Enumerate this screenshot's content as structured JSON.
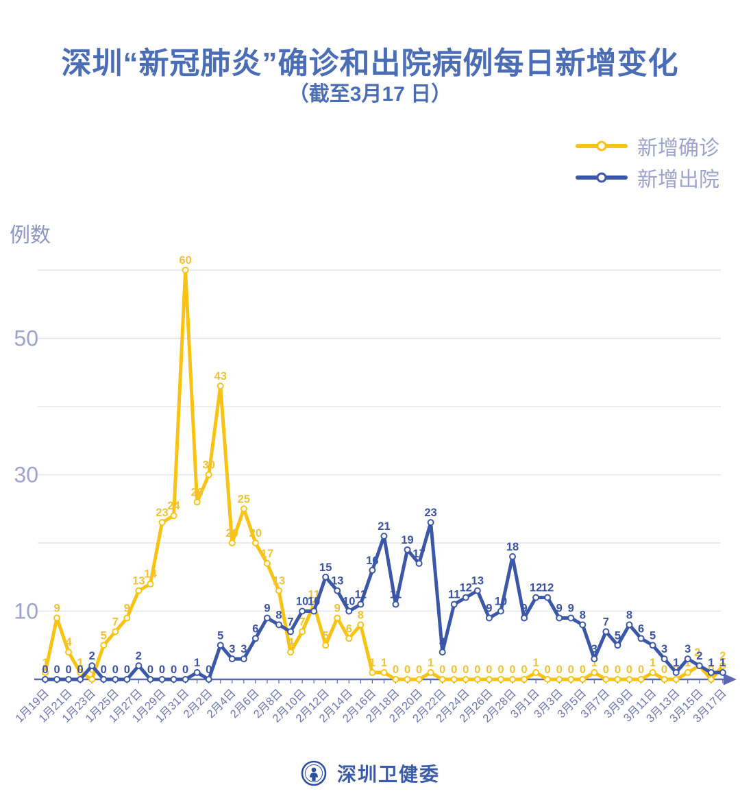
{
  "title": "深圳“新冠肺炎”确诊和出院病例每日新增变化",
  "subtitle": "（截至3月17 日）",
  "y_axis_title": "例数",
  "legend": [
    {
      "label": "新增确诊",
      "color": "#f8c312"
    },
    {
      "label": "新增出院",
      "color": "#3b57a8"
    }
  ],
  "footer": {
    "name": "深圳卫健委",
    "logo": "shenzhen-health-commission-logo"
  },
  "colors": {
    "title": "#4a6db5",
    "axis": "#5c69b2",
    "x_tick_label": "#6b76b8",
    "y_tick_label": "#9ca3ce",
    "gridline": "#e4e5ea",
    "confirmed_line": "#f8c312",
    "confirmed_label": "#f0c235",
    "discharged_line": "#3b57a8",
    "discharged_label": "#3a53a6"
  },
  "chart_data": {
    "type": "line",
    "title": "深圳“新冠肺炎”确诊和出院病例每日新增变化",
    "subtitle": "（截至3月17 日）",
    "ylabel": "例数",
    "ylim": [
      0,
      62
    ],
    "yticks_labeled": [
      10,
      30,
      50
    ],
    "gridlines": [
      10,
      20,
      30,
      40,
      50,
      60
    ],
    "grid": "horizontal-only",
    "legend_position": "top-right",
    "x_label_every": 2,
    "x": [
      "1月19日",
      "1月20日",
      "1月21日",
      "1月22日",
      "1月23日",
      "1月24日",
      "1月25日",
      "1月26日",
      "1月27日",
      "1月28日",
      "1月29日",
      "1月30日",
      "1月31日",
      "2月1日",
      "2月2日",
      "2月3日",
      "2月4日",
      "2月5日",
      "2月6日",
      "2月7日",
      "2月8日",
      "2月9日",
      "2月10日",
      "2月11日",
      "2月12日",
      "2月13日",
      "2月14日",
      "2月15日",
      "2月16日",
      "2月17日",
      "2月18日",
      "2月19日",
      "2月20日",
      "2月21日",
      "2月22日",
      "2月23日",
      "2月24日",
      "2月25日",
      "2月26日",
      "2月27日",
      "2月28日",
      "2月29日",
      "3月1日",
      "3月2日",
      "3月3日",
      "3月4日",
      "3月5日",
      "3月6日",
      "3月7日",
      "3月8日",
      "3月9日",
      "3月10日",
      "3月11日",
      "3月12日",
      "3月13日",
      "3月14日",
      "3月15日",
      "3月16日",
      "3月17日"
    ],
    "series": [
      {
        "name": "新增确诊",
        "values": [
          1,
          9,
          4,
          1,
          0,
          5,
          7,
          9,
          13,
          14,
          23,
          24,
          60,
          26,
          30,
          43,
          20,
          25,
          20,
          17,
          13,
          4,
          7,
          11,
          5,
          9,
          6,
          8,
          1,
          1,
          0,
          0,
          0,
          1,
          0,
          0,
          0,
          0,
          0,
          0,
          0,
          0,
          1,
          0,
          0,
          0,
          0,
          1,
          0,
          0,
          0,
          0,
          1,
          0,
          0,
          1,
          2,
          0,
          2
        ]
      },
      {
        "name": "新增出院",
        "values": [
          0,
          0,
          0,
          0,
          2,
          0,
          0,
          0,
          2,
          0,
          0,
          0,
          0,
          1,
          0,
          5,
          3,
          3,
          6,
          9,
          8,
          7,
          10,
          10,
          15,
          13,
          10,
          11,
          16,
          21,
          11,
          19,
          17,
          23,
          4,
          11,
          12,
          13,
          9,
          10,
          18,
          9,
          12,
          12,
          9,
          9,
          8,
          3,
          7,
          5,
          8,
          6,
          5,
          3,
          1,
          3,
          2,
          1,
          1
        ]
      }
    ]
  }
}
